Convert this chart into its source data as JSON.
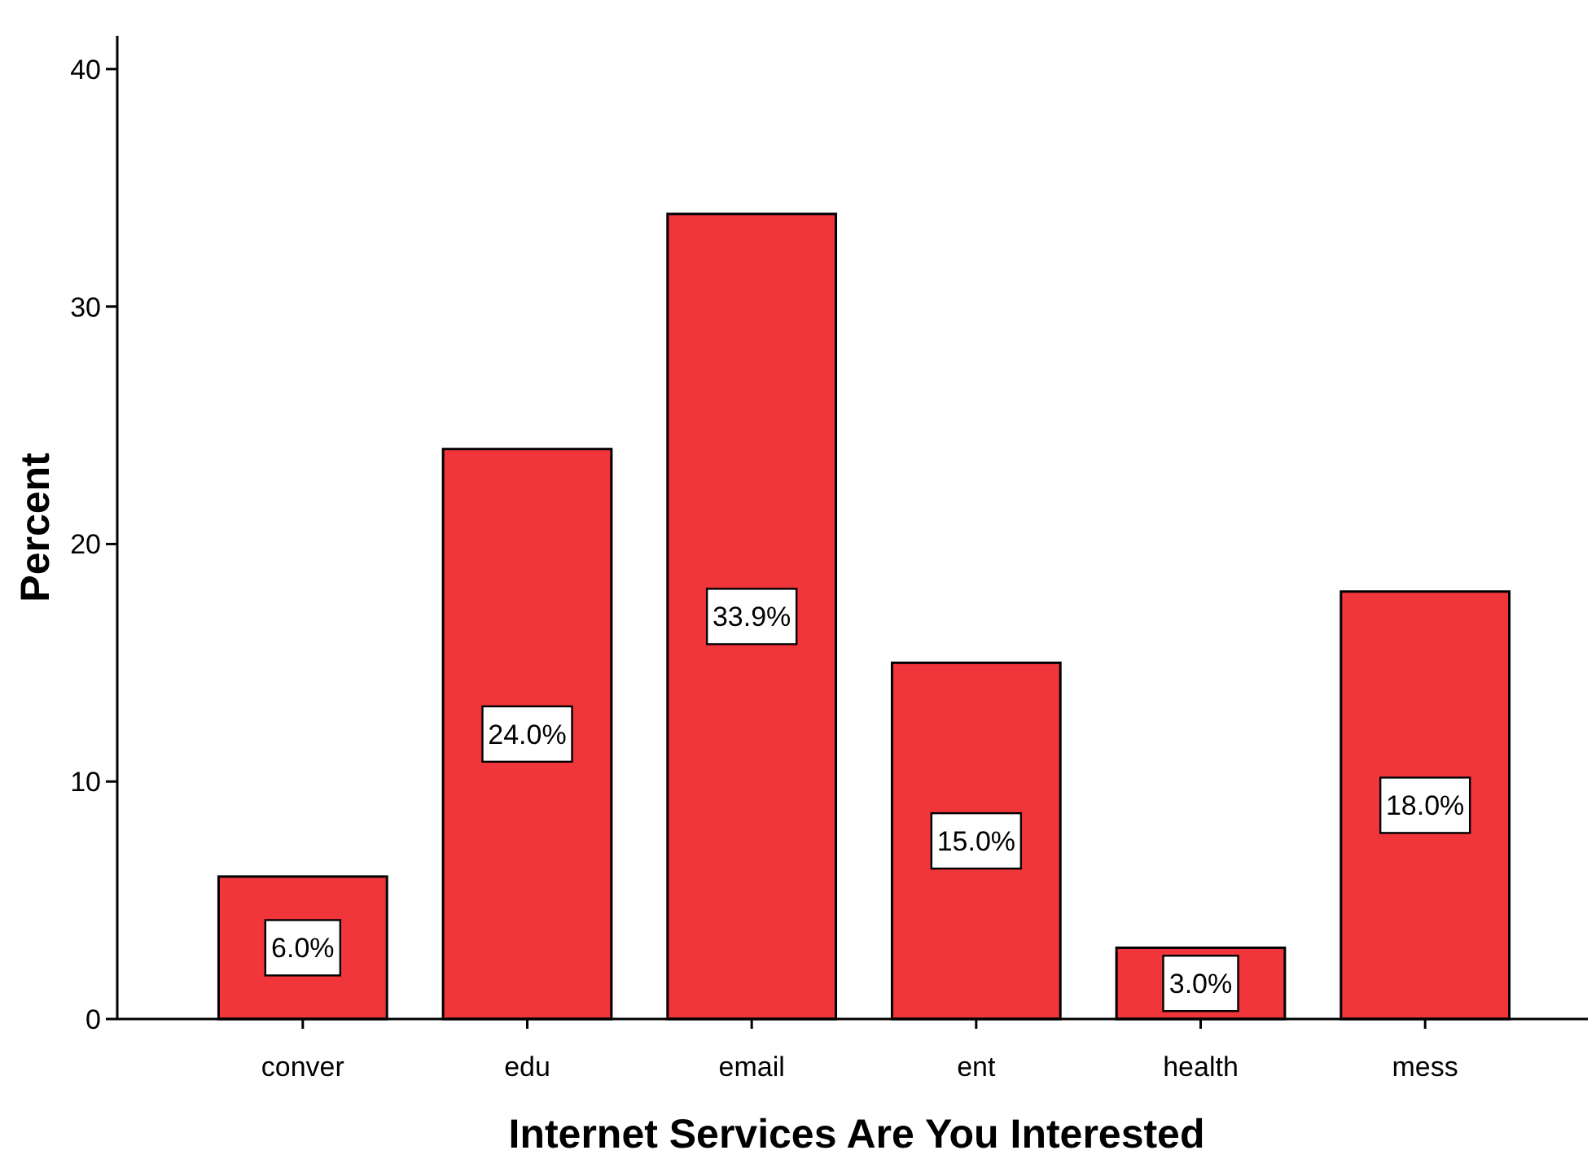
{
  "chart_data": {
    "type": "bar",
    "xlabel": "Internet Services Are You Interested",
    "ylabel": "Percent",
    "categories": [
      "conver",
      "edu",
      "email",
      "ent",
      "health",
      "mess"
    ],
    "values": [
      6.0,
      24.0,
      33.9,
      15.0,
      3.0,
      18.0
    ],
    "value_labels": [
      "6.0%",
      "24.0%",
      "33.9%",
      "15.0%",
      "3.0%",
      "18.0%"
    ],
    "color": "#f0353b",
    "ylim": [
      0,
      41.4
    ],
    "yticks": [
      0,
      10,
      20,
      30,
      40
    ],
    "grid": false
  }
}
